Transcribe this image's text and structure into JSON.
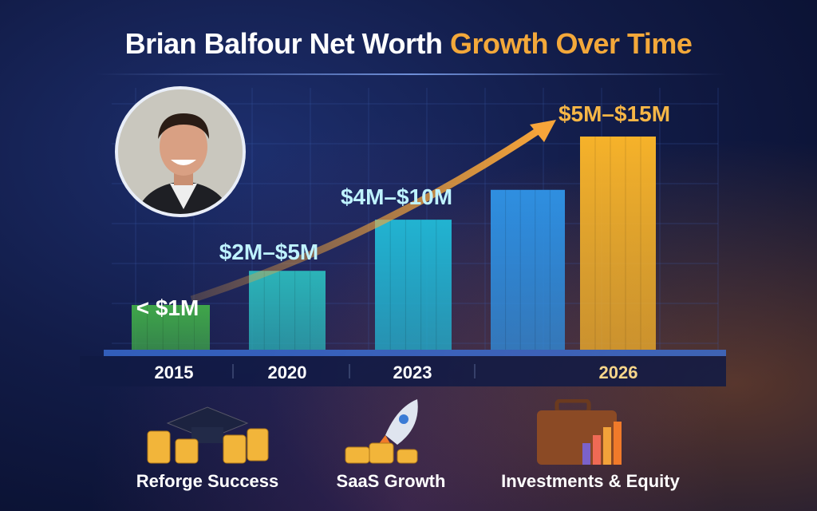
{
  "title": {
    "main": "Brian Balfour Net Worth",
    "highlight": "Growth Over Time"
  },
  "chart_data": {
    "type": "bar",
    "title": "Brian Balfour Net Worth Growth Over Time",
    "categories": [
      "2015",
      "2020",
      "2023",
      "",
      "2026"
    ],
    "value_labels": [
      "< $1M",
      "$2M–$5M",
      "$4M–$10M",
      "",
      "$5M–$15M"
    ],
    "relative_levels": [
      0.21,
      0.37,
      0.61,
      0.75,
      1.0
    ],
    "colors": [
      "#3fa64a",
      "#2bb3b8",
      "#22b3d1",
      "#2f8fe0",
      "#f6b22a"
    ],
    "trend_arrow": true,
    "grid": true
  },
  "footer": {
    "items": [
      {
        "label": "Reforge Success",
        "icon": "graduation-cap-coins-icon"
      },
      {
        "label": "SaaS Growth",
        "icon": "rocket-icon"
      },
      {
        "label": "Investments & Equity",
        "icon": "briefcase-chart-icon"
      }
    ]
  }
}
